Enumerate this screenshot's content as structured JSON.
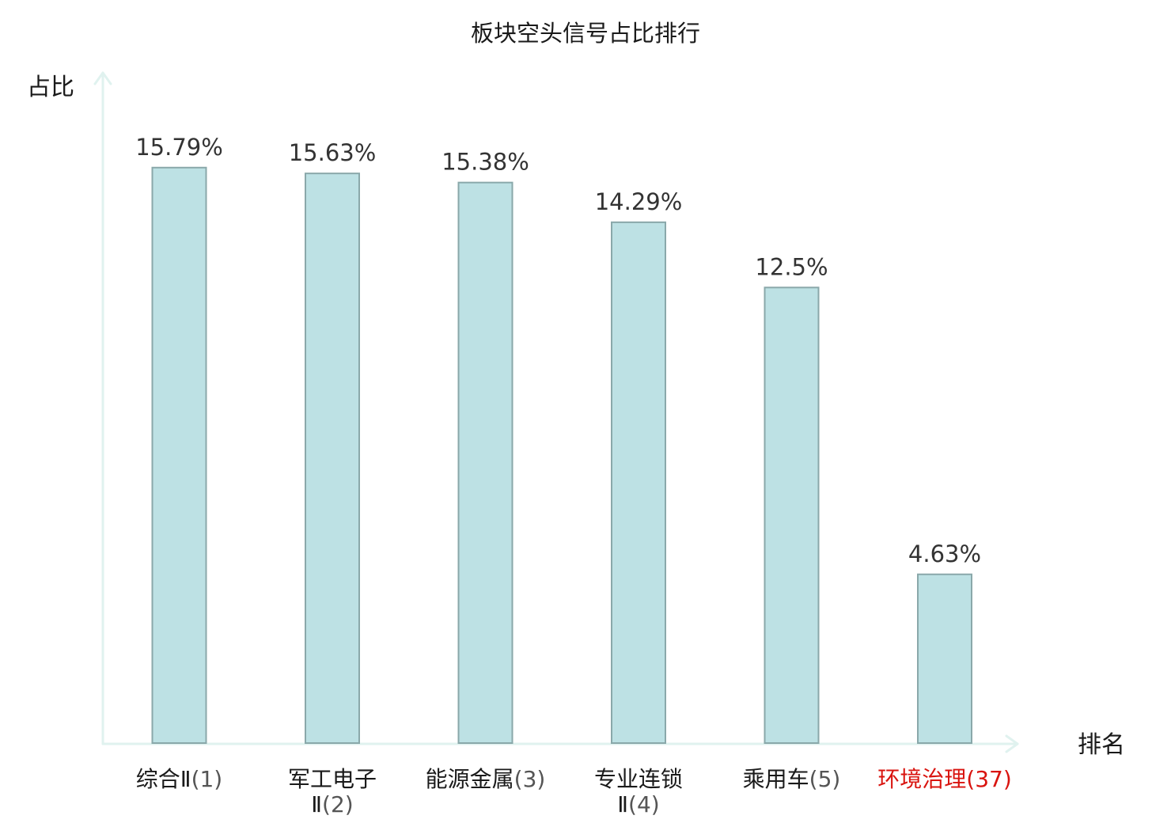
{
  "chart_data": {
    "type": "bar",
    "title": "板块空头信号占比排行",
    "xlabel": "排名",
    "ylabel": "占比",
    "ylim": [
      0,
      18
    ],
    "grid": false,
    "legend": "none",
    "categories": [
      {
        "name": "综合Ⅱ",
        "rank": "(1)",
        "lines": [
          {
            "name": "综合Ⅱ",
            "rank": "(1)"
          }
        ]
      },
      {
        "name": "军工电子Ⅱ",
        "rank": "(2)",
        "lines": [
          {
            "name": "军工电子",
            "rank": ""
          },
          {
            "name": "Ⅱ",
            "rank": "(2)"
          }
        ]
      },
      {
        "name": "能源金属",
        "rank": "(3)",
        "lines": [
          {
            "name": "能源金属",
            "rank": "(3)"
          }
        ]
      },
      {
        "name": "专业连锁Ⅱ",
        "rank": "(4)",
        "lines": [
          {
            "name": "专业连锁",
            "rank": ""
          },
          {
            "name": "Ⅱ",
            "rank": "(4)"
          }
        ]
      },
      {
        "name": "乘用车",
        "rank": "(5)",
        "lines": [
          {
            "name": "乘用车",
            "rank": "(5)"
          }
        ]
      },
      {
        "name": "环境治理",
        "rank": "(37)",
        "lines": [
          {
            "name": "环境治理",
            "rank": "(37)"
          }
        ],
        "highlight": true
      }
    ],
    "values": [
      15.79,
      15.63,
      15.38,
      14.29,
      12.5,
      4.63
    ],
    "value_labels": [
      "15.79%",
      "15.63%",
      "15.38%",
      "14.29%",
      "12.5%",
      "4.63%"
    ],
    "colors": {
      "bar_fill": "#bde1e4",
      "bar_stroke": "#8aa8aa",
      "axis": "#e0f2ef",
      "highlight_text": "#d9140f"
    }
  }
}
